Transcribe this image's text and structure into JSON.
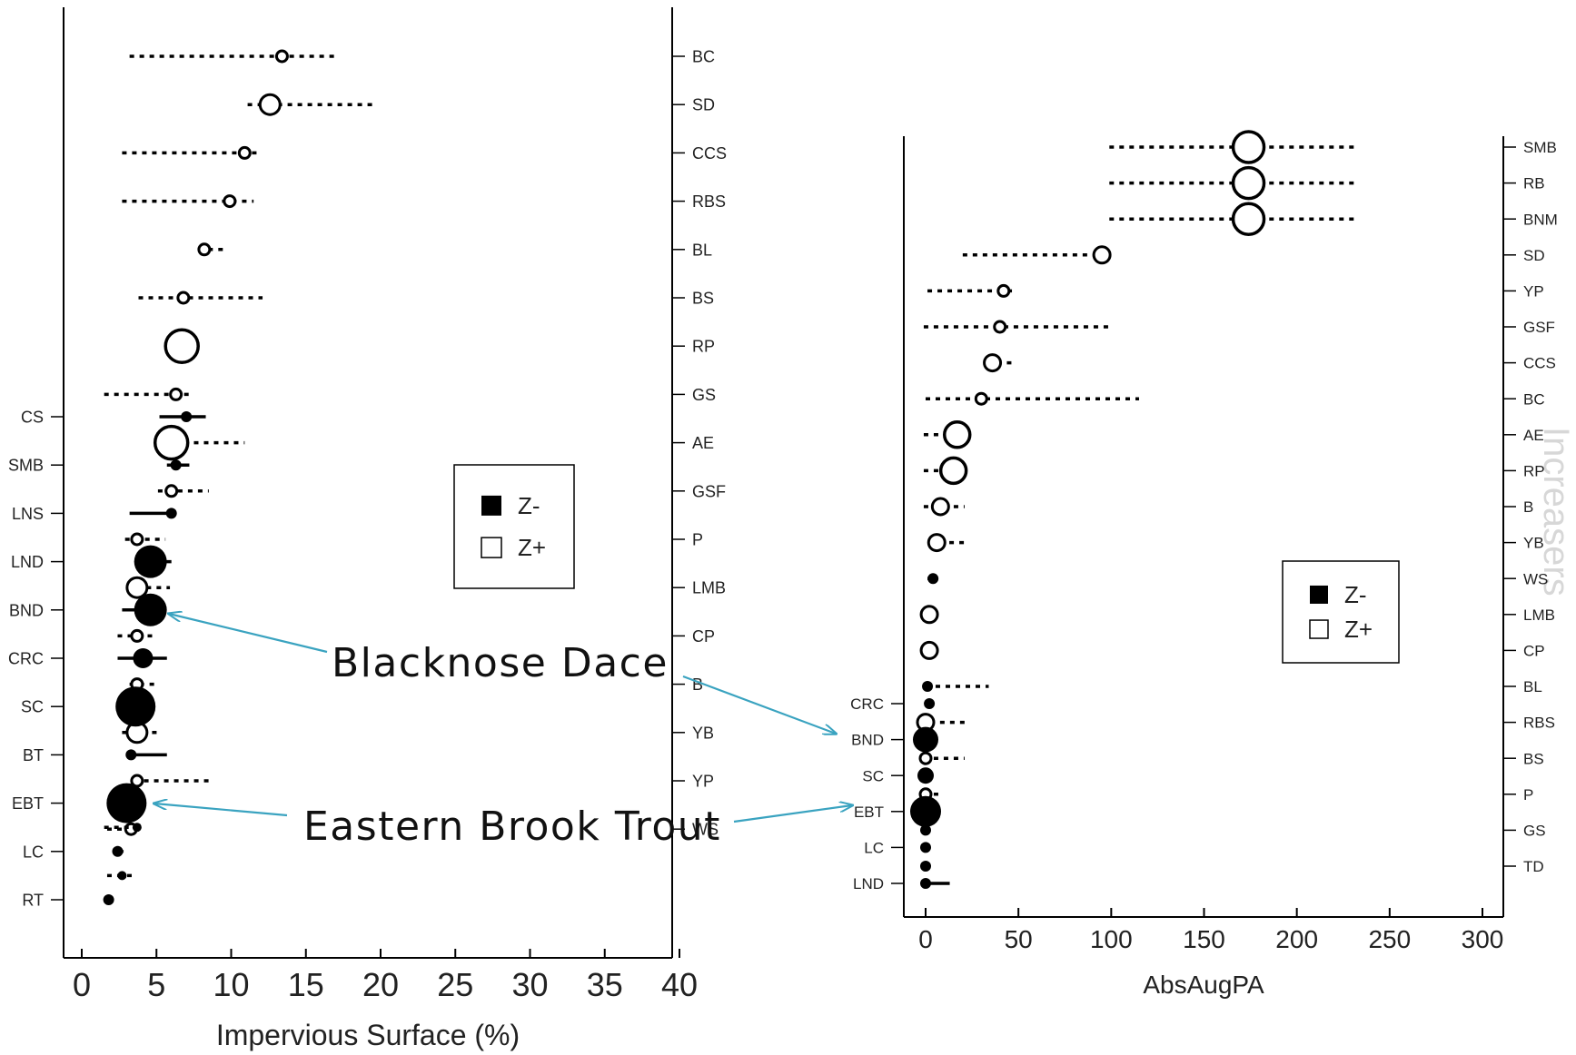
{
  "accent_color": "#3aa3c0",
  "chart_data": [
    {
      "type": "scatter",
      "subtype": "change-point dot plot with interval whiskers",
      "xlabel": "Impervious Surface (%)",
      "xlim": [
        0,
        40
      ],
      "xticks": [
        0,
        5,
        10,
        15,
        20,
        25,
        30,
        35,
        40
      ],
      "legend": {
        "placement": "center-right",
        "entries": [
          "Z-",
          "Z+"
        ]
      },
      "left_axis_label": "",
      "right_axis_label": "",
      "decreasers": [
        {
          "label": "CS",
          "cp": 7.0,
          "lo": 5.2,
          "hi": 8.3,
          "size": 1,
          "line": "solid"
        },
        {
          "label": "SMB",
          "cp": 6.3,
          "lo": 5.7,
          "hi": 7.2,
          "size": 1,
          "line": "solid"
        },
        {
          "label": "LNS",
          "cp": 6.0,
          "lo": 3.2,
          "hi": 6.3,
          "size": 1,
          "line": "solid"
        },
        {
          "label": "LND",
          "cp": 4.6,
          "lo": 4.0,
          "hi": 6.0,
          "size": 3,
          "line": "solid"
        },
        {
          "label": "BND",
          "cp": 4.6,
          "lo": 2.7,
          "hi": 5.2,
          "size": 3,
          "line": "solid"
        },
        {
          "label": "CRC",
          "cp": 4.1,
          "lo": 2.4,
          "hi": 5.7,
          "size": 2,
          "line": "solid"
        },
        {
          "label": "SC",
          "cp": 3.6,
          "lo": 2.8,
          "hi": 4.2,
          "size": 4,
          "line": "solid"
        },
        {
          "label": "BT",
          "cp": 3.3,
          "lo": 3.1,
          "hi": 5.7,
          "size": 1,
          "line": "solid"
        },
        {
          "label": "EBT",
          "cp": 3.0,
          "lo": 2.4,
          "hi": 3.8,
          "size": 4,
          "line": "solid"
        },
        {
          "label": "LC",
          "cp": 2.4,
          "lo": 2.1,
          "hi": 2.8,
          "size": 1,
          "line": "dotted"
        },
        {
          "label": "RT",
          "cp": 1.8,
          "lo": 1.6,
          "hi": 2.1,
          "size": 1,
          "line": "solid"
        }
      ],
      "increasers": [
        {
          "label": "BC",
          "cp": 13.4,
          "lo": 3.2,
          "hi": 17.0,
          "size": 1
        },
        {
          "label": "SD",
          "cp": 12.6,
          "lo": 11.1,
          "hi": 19.5,
          "size": 2
        },
        {
          "label": "CCS",
          "cp": 10.9,
          "lo": 2.7,
          "hi": 11.7,
          "size": 1
        },
        {
          "label": "RBS",
          "cp": 9.9,
          "lo": 2.7,
          "hi": 11.5,
          "size": 1
        },
        {
          "label": "BL",
          "cp": 8.2,
          "lo": 7.8,
          "hi": 9.5,
          "size": 1
        },
        {
          "label": "BS",
          "cp": 6.8,
          "lo": 3.8,
          "hi": 12.1,
          "size": 1
        },
        {
          "label": "RP",
          "cp": 6.7,
          "lo": 6.7,
          "hi": 6.7,
          "size": 3
        },
        {
          "label": "GS",
          "cp": 6.3,
          "lo": 1.5,
          "hi": 7.4,
          "size": 1
        },
        {
          "label": "AE",
          "cp": 6.0,
          "lo": 5.5,
          "hi": 10.9,
          "size": 3
        },
        {
          "label": "GSF",
          "cp": 6.0,
          "lo": 5.1,
          "hi": 8.5,
          "size": 1
        },
        {
          "label": "P",
          "cp": 3.7,
          "lo": 2.9,
          "hi": 5.6,
          "size": 1
        },
        {
          "label": "LMB",
          "cp": 3.7,
          "lo": 3.0,
          "hi": 5.9,
          "size": 2
        },
        {
          "label": "CP",
          "cp": 3.7,
          "lo": 2.4,
          "hi": 5.0,
          "size": 1
        },
        {
          "label": "B",
          "cp": 3.7,
          "lo": 3.2,
          "hi": 5.2,
          "size": 1
        },
        {
          "label": "YB",
          "cp": 3.7,
          "lo": 2.7,
          "hi": 5.2,
          "size": 2
        },
        {
          "label": "YP",
          "cp": 3.7,
          "lo": 3.5,
          "hi": 8.5,
          "size": 1
        },
        {
          "label": "WS",
          "cp": 3.3,
          "lo": 1.7,
          "hi": 3.7,
          "size": 1
        }
      ],
      "extra_z_minus": [
        {
          "y_between": [
            "LC",
            "RT"
          ],
          "cp": 2.7,
          "lo": 1.7,
          "hi": 3.4
        },
        {
          "y_between": [
            "EBT",
            "LC"
          ],
          "cp": 3.7,
          "lo": 1.5,
          "hi": 3.8
        }
      ]
    },
    {
      "type": "scatter",
      "subtype": "change-point dot plot with interval whiskers",
      "xlabel": "AbsAugPA",
      "xlim": [
        0,
        300
      ],
      "xticks": [
        0,
        50,
        100,
        150,
        200,
        250,
        300
      ],
      "legend": {
        "placement": "center-right",
        "entries": [
          "Z-",
          "Z+"
        ]
      },
      "vertical_watermark": "Increasers",
      "decreasers": [
        {
          "label": "CRC",
          "cp": 2,
          "lo": 0,
          "hi": 3,
          "size": 1
        },
        {
          "label": "BND",
          "cp": 0,
          "lo": -3,
          "hi": 4,
          "size": 3
        },
        {
          "label": "SC",
          "cp": 0,
          "lo": -2,
          "hi": 3,
          "size": 2
        },
        {
          "label": "EBT",
          "cp": 0,
          "lo": -3,
          "hi": 4,
          "size": 4
        },
        {
          "label": "LC",
          "cp": 0,
          "lo": -1,
          "hi": 2,
          "size": 1
        },
        {
          "label": "LND",
          "cp": 0,
          "lo": -2,
          "hi": 13,
          "size": 1
        }
      ],
      "increasers": [
        {
          "label": "SMB",
          "cp": 174,
          "lo": 99,
          "hi": 232,
          "size": 4
        },
        {
          "label": "RB",
          "cp": 174,
          "lo": 99,
          "hi": 232,
          "size": 4
        },
        {
          "label": "BNM",
          "cp": 174,
          "lo": 99,
          "hi": 232,
          "size": 4
        },
        {
          "label": "SD",
          "cp": 95,
          "lo": 20,
          "hi": 97,
          "size": 2
        },
        {
          "label": "YP",
          "cp": 42,
          "lo": 1,
          "hi": 47,
          "size": 1
        },
        {
          "label": "GSF",
          "cp": 40,
          "lo": -1,
          "hi": 101,
          "size": 1
        },
        {
          "label": "CCS",
          "cp": 36,
          "lo": 33,
          "hi": 47,
          "size": 2
        },
        {
          "label": "BC",
          "cp": 30,
          "lo": 0,
          "hi": 115,
          "size": 1
        },
        {
          "label": "AE",
          "cp": 17,
          "lo": -1,
          "hi": 20,
          "size": 3
        },
        {
          "label": "RP",
          "cp": 15,
          "lo": -1,
          "hi": 17,
          "size": 3
        },
        {
          "label": "B",
          "cp": 8,
          "lo": -1,
          "hi": 21,
          "size": 2
        },
        {
          "label": "YB",
          "cp": 6,
          "lo": 2,
          "hi": 21,
          "size": 2
        },
        {
          "label": "WS",
          "cp": 4,
          "lo": 1,
          "hi": 5,
          "size": 1,
          "filled": true
        },
        {
          "label": "LMB",
          "cp": 2,
          "lo": 2,
          "hi": 2,
          "size": 2
        },
        {
          "label": "CP",
          "cp": 2,
          "lo": 2,
          "hi": 2,
          "size": 2
        },
        {
          "label": "BL",
          "cp": 1,
          "lo": 0,
          "hi": 34,
          "size": 1,
          "filled": true
        },
        {
          "label": "RBS",
          "cp": 0,
          "lo": -3,
          "hi": 21,
          "size": 2
        },
        {
          "label": "BS",
          "cp": 0,
          "lo": -1,
          "hi": 21,
          "size": 1
        },
        {
          "label": "P",
          "cp": 0,
          "lo": -1,
          "hi": 9,
          "size": 1
        },
        {
          "label": "GS",
          "cp": 0,
          "lo": 0,
          "hi": 0,
          "size": 1,
          "filled": true
        },
        {
          "label": "TD",
          "cp": 0,
          "lo": 0,
          "hi": 0,
          "size": 1,
          "filled": true
        }
      ]
    }
  ],
  "annotations": [
    {
      "text": "Blacknose Dace"
    },
    {
      "text": "Eastern Brook Trout"
    }
  ]
}
